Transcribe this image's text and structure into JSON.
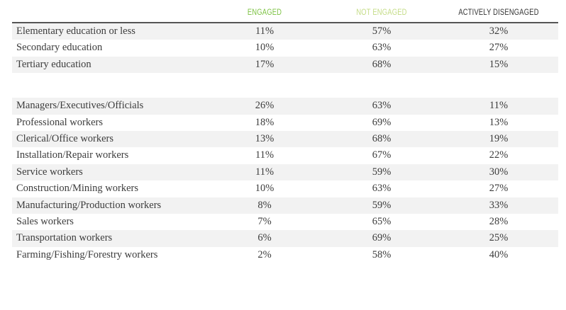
{
  "columns": {
    "engaged": "ENGAGED",
    "not_engaged": "NOT ENGAGED",
    "actively_disengaged": "ACTIVELY DISENGAGED"
  },
  "colors": {
    "engaged": "#7cc242",
    "not_engaged": "#c4dc86",
    "actively_disengaged": "#333333",
    "row_shade": "#f2f2f2"
  },
  "education_rows": [
    {
      "label": "Elementary education or less",
      "engaged": "11%",
      "not_engaged": "57%",
      "actively_disengaged": "32%"
    },
    {
      "label": "Secondary education",
      "engaged": "10%",
      "not_engaged": "63%",
      "actively_disengaged": "27%"
    },
    {
      "label": "Tertiary education",
      "engaged": "17%",
      "not_engaged": "68%",
      "actively_disengaged": "15%"
    }
  ],
  "occupation_rows": [
    {
      "label": "Managers/Executives/Officials",
      "engaged": "26%",
      "not_engaged": "63%",
      "actively_disengaged": "11%"
    },
    {
      "label": "Professional workers",
      "engaged": "18%",
      "not_engaged": "69%",
      "actively_disengaged": "13%"
    },
    {
      "label": "Clerical/Office workers",
      "engaged": "13%",
      "not_engaged": "68%",
      "actively_disengaged": "19%"
    },
    {
      "label": "Installation/Repair workers",
      "engaged": "11%",
      "not_engaged": "67%",
      "actively_disengaged": "22%"
    },
    {
      "label": "Service workers",
      "engaged": "11%",
      "not_engaged": "59%",
      "actively_disengaged": "30%"
    },
    {
      "label": "Construction/Mining workers",
      "engaged": "10%",
      "not_engaged": "63%",
      "actively_disengaged": "27%"
    },
    {
      "label": "Manufacturing/Production workers",
      "engaged": "8%",
      "not_engaged": "59%",
      "actively_disengaged": "33%"
    },
    {
      "label": "Sales workers",
      "engaged": "7%",
      "not_engaged": "65%",
      "actively_disengaged": "28%"
    },
    {
      "label": "Transportation workers",
      "engaged": "6%",
      "not_engaged": "69%",
      "actively_disengaged": "25%"
    },
    {
      "label": "Farming/Fishing/Forestry workers",
      "engaged": "2%",
      "not_engaged": "58%",
      "actively_disengaged": "40%"
    }
  ]
}
